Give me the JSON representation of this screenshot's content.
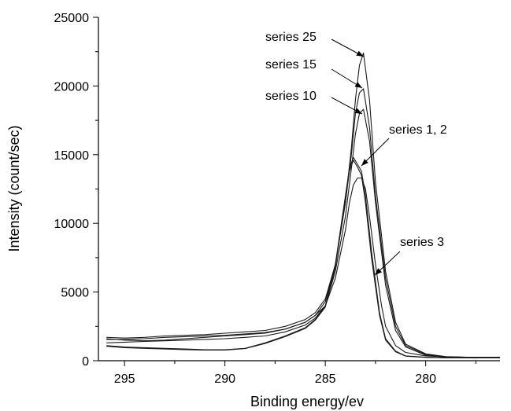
{
  "chart_data": {
    "type": "line",
    "title": "",
    "xlabel": "Binding energy/ev",
    "ylabel": "Intensity (count/sec)",
    "xlim": [
      296.3,
      276.3
    ],
    "ylim": [
      0,
      25000
    ],
    "x_reversed": true,
    "xticks": [
      295,
      290,
      285,
      280
    ],
    "yticks": [
      0,
      5000,
      10000,
      15000,
      20000,
      25000
    ],
    "grid": false,
    "series": [
      {
        "x": [
          295.9,
          295.0,
          294.0,
          293.0,
          292.0,
          291.0,
          290.0,
          289.0,
          288.0,
          287.0,
          286.0,
          285.5,
          285.0,
          284.5,
          284.0,
          283.7,
          283.5,
          283.3,
          283.1,
          282.8,
          282.5,
          282.0,
          281.5,
          281.0,
          280.0,
          279.0,
          278.0,
          277.0,
          276.3
        ],
        "values": [
          1700,
          1650,
          1700,
          1800,
          1850,
          1900,
          2000,
          2100,
          2200,
          2500,
          3000,
          3500,
          4500,
          7000,
          11500,
          15500,
          19000,
          21500,
          22400,
          19000,
          13000,
          6500,
          2800,
          1200,
          500,
          300,
          250,
          250,
          250
        ]
      },
      {
        "x": [
          295.9,
          295.0,
          294.0,
          293.0,
          292.0,
          291.0,
          290.0,
          289.0,
          288.0,
          287.0,
          286.0,
          285.5,
          285.0,
          284.5,
          284.0,
          283.7,
          283.5,
          283.3,
          283.1,
          282.8,
          282.5,
          282.0,
          281.5,
          281.0,
          280.0,
          279.0,
          278.0,
          277.0,
          276.3
        ],
        "values": [
          1550,
          1550,
          1600,
          1700,
          1750,
          1800,
          1850,
          1950,
          2050,
          2300,
          2800,
          3300,
          4300,
          7000,
          11500,
          15000,
          18000,
          19500,
          19800,
          17000,
          12000,
          6000,
          2500,
          1100,
          450,
          280,
          250,
          250,
          250
        ]
      },
      {
        "x": [
          295.9,
          295.0,
          294.0,
          293.0,
          292.0,
          291.0,
          290.0,
          289.0,
          288.0,
          287.0,
          286.0,
          285.5,
          285.0,
          284.5,
          284.0,
          283.7,
          283.5,
          283.3,
          283.1,
          282.8,
          282.5,
          282.0,
          281.5,
          281.0,
          280.0,
          279.0,
          278.0,
          277.0,
          276.3
        ],
        "values": [
          1300,
          1350,
          1400,
          1450,
          1500,
          1550,
          1600,
          1700,
          1800,
          2100,
          2600,
          3100,
          4000,
          6500,
          10500,
          14000,
          16500,
          18000,
          18300,
          16000,
          11500,
          5500,
          2200,
          1000,
          400,
          260,
          240,
          240,
          240
        ]
      },
      {
        "x": [
          295.9,
          295.0,
          294.0,
          293.0,
          292.0,
          291.0,
          290.0,
          289.0,
          288.0,
          287.0,
          286.0,
          285.5,
          285.0,
          284.5,
          284.0,
          283.8,
          283.6,
          283.4,
          283.2,
          283.0,
          282.7,
          282.3,
          282.0,
          281.5,
          281.0,
          280.0,
          279.0,
          278.0,
          277.0,
          276.3
        ],
        "values": [
          1100,
          1000,
          950,
          900,
          850,
          800,
          800,
          900,
          1300,
          1800,
          2400,
          3000,
          4000,
          7000,
          12000,
          14000,
          14800,
          14300,
          13800,
          12000,
          8000,
          3500,
          1600,
          700,
          350,
          250,
          220,
          220,
          220,
          220
        ]
      },
      {
        "x": [
          295.9,
          295.0,
          294.0,
          293.0,
          292.0,
          291.0,
          290.0,
          289.0,
          288.0,
          287.0,
          286.0,
          285.5,
          285.0,
          284.5,
          284.0,
          283.8,
          283.6,
          283.4,
          283.2,
          283.0,
          282.7,
          282.3,
          282.0,
          281.5,
          281.0,
          280.0,
          279.0,
          278.0,
          277.0,
          276.3
        ],
        "values": [
          1050,
          950,
          900,
          850,
          800,
          780,
          780,
          880,
          1250,
          1750,
          2350,
          2950,
          3900,
          6800,
          11800,
          13800,
          14600,
          14100,
          13500,
          11500,
          7500,
          3300,
          1500,
          650,
          330,
          240,
          210,
          210,
          210,
          210
        ]
      },
      {
        "x": [
          295.9,
          295.0,
          294.0,
          293.0,
          292.0,
          291.0,
          290.0,
          289.0,
          288.0,
          287.0,
          286.0,
          285.5,
          285.0,
          284.5,
          284.0,
          283.8,
          283.6,
          283.4,
          283.2,
          283.0,
          282.8,
          282.5,
          282.2,
          282.0,
          281.5,
          281.0,
          280.0,
          279.0,
          278.0,
          277.0,
          276.3
        ],
        "values": [
          1600,
          1500,
          1450,
          1500,
          1600,
          1700,
          1800,
          1900,
          2000,
          2300,
          2800,
          3300,
          4000,
          6000,
          9500,
          11500,
          12800,
          13300,
          13300,
          12500,
          10500,
          7000,
          4000,
          2500,
          1100,
          600,
          350,
          280,
          260,
          260,
          260
        ]
      }
    ],
    "annotations": [
      {
        "text": "series 25"
      },
      {
        "text": "series 15"
      },
      {
        "text": "series 10"
      },
      {
        "text": "series 1, 2"
      },
      {
        "text": "series 3"
      }
    ]
  }
}
